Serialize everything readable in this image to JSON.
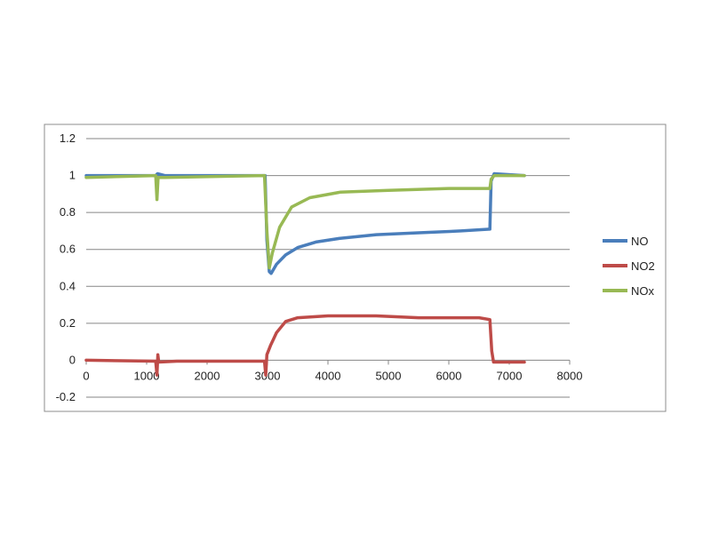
{
  "chart_data": {
    "type": "line",
    "title": "",
    "xlabel": "",
    "ylabel": "",
    "xlim": [
      0,
      8000
    ],
    "ylim": [
      -0.2,
      1.2
    ],
    "x_ticks": [
      "0",
      "1000",
      "2000",
      "3000",
      "4000",
      "5000",
      "6000",
      "7000",
      "8000"
    ],
    "y_ticks": [
      "-0.2",
      "0",
      "0.2",
      "0.4",
      "0.6",
      "0.8",
      "1",
      "1.2"
    ],
    "grid": "horizontal",
    "legend_position": "right",
    "series": [
      {
        "name": "NO",
        "color": "#4a7ebb",
        "points": [
          [
            0,
            1.0
          ],
          [
            1150,
            1.0
          ],
          [
            1180,
            1.01
          ],
          [
            1300,
            1.0
          ],
          [
            2960,
            1.0
          ],
          [
            2990,
            0.65
          ],
          [
            3030,
            0.48
          ],
          [
            3060,
            0.47
          ],
          [
            3150,
            0.52
          ],
          [
            3300,
            0.57
          ],
          [
            3500,
            0.61
          ],
          [
            3800,
            0.64
          ],
          [
            4200,
            0.66
          ],
          [
            4800,
            0.68
          ],
          [
            5500,
            0.69
          ],
          [
            6200,
            0.7
          ],
          [
            6680,
            0.71
          ],
          [
            6700,
            0.97
          ],
          [
            6750,
            1.01
          ],
          [
            7250,
            1.0
          ]
        ]
      },
      {
        "name": "NO2",
        "color": "#be4b48",
        "points": [
          [
            0,
            0.0
          ],
          [
            1150,
            -0.005
          ],
          [
            1170,
            -0.08
          ],
          [
            1185,
            0.03
          ],
          [
            1200,
            -0.01
          ],
          [
            1500,
            -0.005
          ],
          [
            2950,
            -0.005
          ],
          [
            2970,
            -0.08
          ],
          [
            2990,
            0.03
          ],
          [
            3050,
            0.08
          ],
          [
            3150,
            0.15
          ],
          [
            3300,
            0.21
          ],
          [
            3500,
            0.23
          ],
          [
            4000,
            0.24
          ],
          [
            4800,
            0.24
          ],
          [
            5500,
            0.23
          ],
          [
            6500,
            0.23
          ],
          [
            6680,
            0.22
          ],
          [
            6710,
            0.05
          ],
          [
            6740,
            -0.01
          ],
          [
            7250,
            -0.01
          ]
        ]
      },
      {
        "name": "NOx",
        "color": "#98b954",
        "points": [
          [
            0,
            0.99
          ],
          [
            1150,
            1.0
          ],
          [
            1170,
            0.87
          ],
          [
            1190,
            0.99
          ],
          [
            1300,
            0.99
          ],
          [
            2950,
            1.0
          ],
          [
            2990,
            0.7
          ],
          [
            3030,
            0.5
          ],
          [
            3080,
            0.58
          ],
          [
            3200,
            0.72
          ],
          [
            3400,
            0.83
          ],
          [
            3700,
            0.88
          ],
          [
            4200,
            0.91
          ],
          [
            5000,
            0.92
          ],
          [
            6000,
            0.93
          ],
          [
            6680,
            0.93
          ],
          [
            6700,
            0.98
          ],
          [
            6750,
            1.0
          ],
          [
            7250,
            1.0
          ]
        ]
      }
    ]
  }
}
